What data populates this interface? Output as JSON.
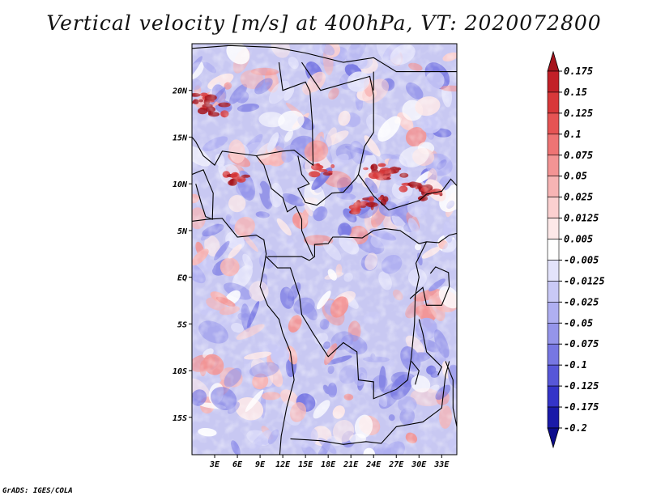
{
  "chart_data": {
    "type": "heatmap",
    "title": "Vertical velocity [m/s] at 400hPa, VT: 2020072800",
    "x_ticks": [
      "3E",
      "6E",
      "9E",
      "12E",
      "15E",
      "18E",
      "21E",
      "24E",
      "27E",
      "30E",
      "33E"
    ],
    "y_ticks": [
      "20N",
      "15N",
      "10N",
      "5N",
      "EQ",
      "5S",
      "10S",
      "15S"
    ],
    "lon_range": [
      0,
      35
    ],
    "lat_range": [
      -19,
      25
    ],
    "colorbar": {
      "levels": [
        "0.175",
        "0.15",
        "0.125",
        "0.1",
        "0.075",
        "0.05",
        "0.025",
        "0.0125",
        "0.005",
        "-0.005",
        "-0.0125",
        "-0.025",
        "-0.05",
        "-0.075",
        "-0.1",
        "-0.125",
        "-0.175",
        "-0.2"
      ],
      "colors": [
        "#a5141c",
        "#c22028",
        "#d8383a",
        "#e65454",
        "#ee7474",
        "#f39494",
        "#f7b4b4",
        "#fbd0d0",
        "#fde8e8",
        "#ffffff",
        "#e3e3fb",
        "#c9c9f6",
        "#afaff1",
        "#9595ea",
        "#7777e2",
        "#5757d8",
        "#3434c8",
        "#1a1aa8",
        "#0c0c8c"
      ],
      "extend": "both",
      "orientation": "vertical"
    }
  },
  "credit": "GrADS: IGES/COLA"
}
